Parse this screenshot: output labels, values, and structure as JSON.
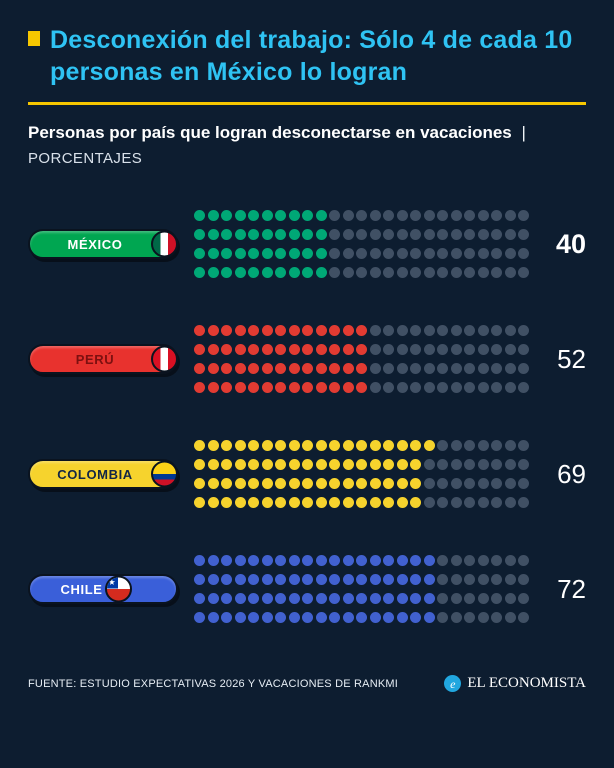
{
  "header": {
    "title": "Desconexión del trabajo: Sólo 4 de cada 10 personas en México lo logran",
    "subtitle": "Personas por país que logran desconectarse en vacaciones",
    "separator": "|",
    "unit": "PORCENTAJES"
  },
  "chart_data": {
    "type": "waffle",
    "title": "Personas por país que logran desconectarse en vacaciones",
    "unit": "PORCENTAJES",
    "grid": {
      "columns": 25,
      "rows": 4,
      "total_dots": 100,
      "fill_order": "column-major"
    },
    "empty_dot_color": "#405064",
    "highlight_category": "MÉXICO",
    "series": [
      {
        "label": "MÉXICO",
        "value": 40,
        "dot_color": "#00a876",
        "pill_color": "#00a651",
        "label_color": "#ffffff",
        "flag": "mexico-flag-icon",
        "value_bold": true
      },
      {
        "label": "PERÚ",
        "value": 52,
        "dot_color": "#e23b32",
        "pill_color": "#e8322e",
        "label_color": "#7d1010",
        "flag": "peru-flag-icon",
        "value_bold": false
      },
      {
        "label": "COLOMBIA",
        "value": 69,
        "dot_color": "#f6d32d",
        "pill_color": "#f6d32d",
        "label_color": "#122646",
        "flag": "colombia-flag-icon",
        "value_bold": false
      },
      {
        "label": "CHILE",
        "value": 72,
        "dot_color": "#4161d0",
        "pill_color": "#3a5fd9",
        "label_color": "#ffffff",
        "flag": "chile-flag-icon",
        "value_bold": false
      }
    ]
  },
  "footer": {
    "source": "FUENTE: ESTUDIO EXPECTATIVAS 2026 Y VACACIONES DE RANKMI",
    "brand": "EL ECONOMISTA",
    "logo_glyph": "e"
  },
  "icons": {
    "title_bullet": "yellow-square",
    "brand_logo": "el-economista-circle-e"
  }
}
